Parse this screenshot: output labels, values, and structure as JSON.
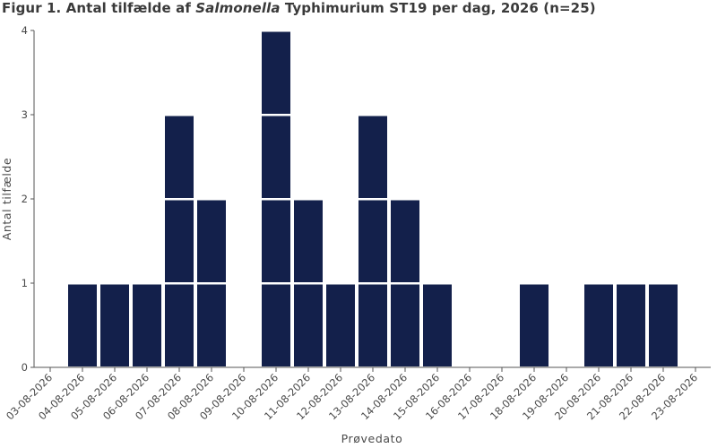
{
  "chart_data": {
    "type": "bar",
    "title": {
      "prefix": "Figur 1. Antal tilfælde af ",
      "italic": "Salmonella",
      "suffix": " Typhimurium ST19 per dag, 2026 (n=25)"
    },
    "xlabel": "Prøvedato",
    "ylabel": "Antal tilfælde",
    "ylim": [
      0,
      4
    ],
    "yticks": [
      0,
      1,
      2,
      3,
      4
    ],
    "categories": [
      "03-08-2026",
      "04-08-2026",
      "05-08-2026",
      "06-08-2026",
      "07-08-2026",
      "08-08-2026",
      "09-08-2026",
      "10-08-2026",
      "11-08-2026",
      "12-08-2026",
      "13-08-2026",
      "14-08-2026",
      "15-08-2026",
      "16-08-2026",
      "17-08-2026",
      "18-08-2026",
      "19-08-2026",
      "20-08-2026",
      "21-08-2026",
      "22-08-2026",
      "23-08-2026"
    ],
    "values": [
      0,
      1,
      1,
      1,
      3,
      2,
      0,
      4,
      2,
      1,
      3,
      2,
      1,
      0,
      0,
      1,
      0,
      1,
      1,
      1,
      0
    ],
    "style": "stacked unit blocks, one block per case",
    "bar_color": "#13204b",
    "grid": false
  }
}
